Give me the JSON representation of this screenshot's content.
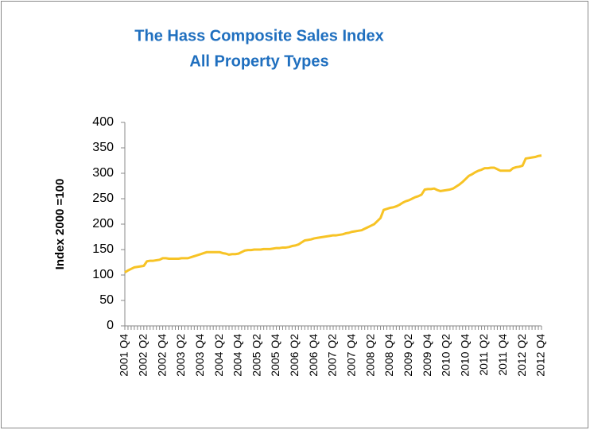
{
  "chart_data": {
    "type": "line",
    "title": "The Hass Composite Sales Index",
    "subtitle": "All Property Types",
    "y_label": "Index 2000 =100",
    "categories": [
      "2001 Q4",
      null,
      null,
      null,
      null,
      null,
      "2002 Q2",
      null,
      null,
      null,
      null,
      null,
      "2002 Q4",
      null,
      null,
      null,
      null,
      null,
      "2003 Q2",
      null,
      null,
      null,
      null,
      null,
      "2003 Q4",
      null,
      null,
      null,
      null,
      null,
      "2004 Q2",
      null,
      null,
      null,
      null,
      null,
      "2004 Q4",
      null,
      null,
      null,
      null,
      null,
      "2005 Q2",
      null,
      null,
      null,
      null,
      null,
      "2005 Q4",
      null,
      null,
      null,
      null,
      null,
      "2006 Q2",
      null,
      null,
      null,
      null,
      null,
      "2006 Q4",
      null,
      null,
      null,
      null,
      null,
      "2007 Q2",
      null,
      null,
      null,
      null,
      null,
      "2007 Q4",
      null,
      null,
      null,
      null,
      null,
      "2008 Q2",
      null,
      null,
      null,
      null,
      null,
      "2008 Q4",
      null,
      null,
      null,
      null,
      null,
      "2009 Q2",
      null,
      null,
      null,
      null,
      null,
      "2009 Q4",
      null,
      null,
      null,
      null,
      null,
      "2010 Q2",
      null,
      null,
      null,
      null,
      null,
      "2010 Q4",
      null,
      null,
      null,
      null,
      null,
      "2011 Q2",
      null,
      null,
      null,
      null,
      null,
      "2011 Q4",
      null,
      null,
      null,
      null,
      null,
      "2012 Q2",
      null,
      null,
      null,
      null,
      null,
      "2012 Q4"
    ],
    "values": [
      105,
      109,
      112,
      115,
      116,
      117,
      118,
      127,
      128,
      128,
      129,
      130,
      133,
      133,
      132,
      132,
      132,
      132,
      133,
      133,
      133,
      135,
      137,
      139,
      141,
      143,
      145,
      145,
      145,
      145,
      145,
      143,
      142,
      140,
      141,
      141,
      142,
      145,
      148,
      149,
      149,
      150,
      150,
      150,
      151,
      151,
      151,
      152,
      153,
      153,
      154,
      154,
      155,
      157,
      158,
      160,
      164,
      168,
      169,
      170,
      172,
      173,
      174,
      175,
      176,
      177,
      178,
      178,
      179,
      180,
      182,
      183,
      185,
      186,
      187,
      188,
      191,
      194,
      197,
      200,
      206,
      212,
      228,
      230,
      232,
      233,
      235,
      238,
      242,
      245,
      247,
      250,
      253,
      255,
      258,
      268,
      269,
      269,
      270,
      267,
      265,
      266,
      267,
      268,
      270,
      274,
      278,
      283,
      289,
      295,
      298,
      302,
      305,
      307,
      310,
      310,
      311,
      311,
      308,
      305,
      305,
      305,
      305,
      310,
      312,
      313,
      315,
      329,
      330,
      331,
      332,
      334,
      335
    ],
    "color": "#f7c325",
    "ylim": [
      0,
      400
    ],
    "yticks": [
      0,
      50,
      100,
      150,
      200,
      250,
      300,
      350,
      400
    ],
    "grid": false
  }
}
